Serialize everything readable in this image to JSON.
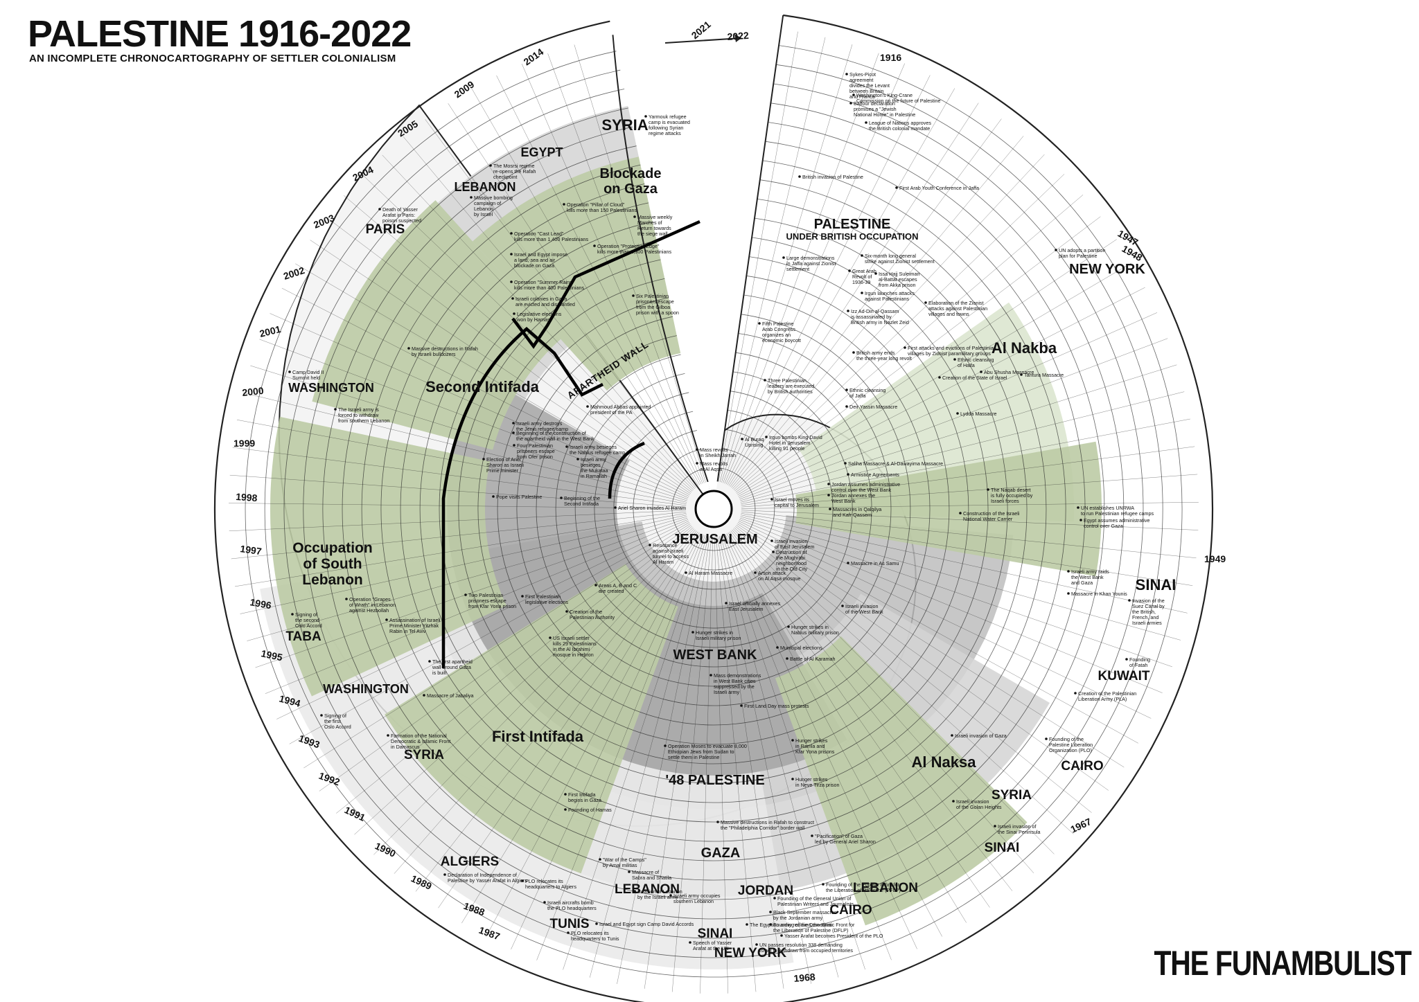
{
  "header": {
    "title": "PALESTINE 1916-2022",
    "subtitle": "AN INCOMPLETE CHRONOCARTOGRAPHY OF SETTLER COLONIALISM"
  },
  "brand": "THE FUNAMBULIST",
  "arrow_label": "2022",
  "year_labels_major": [
    "1916",
    "1947",
    "1948",
    "1949",
    "1967",
    "1968",
    "1987",
    "1988",
    "1989",
    "1990",
    "1991",
    "1992",
    "1993",
    "1994",
    "1995",
    "1996",
    "1997",
    "1998",
    "1999",
    "2000",
    "2001",
    "2002",
    "2003",
    "2004",
    "2005",
    "2009",
    "2014",
    "2021"
  ],
  "places": [
    {
      "id": "new-york-1948",
      "text": "NEW YORK"
    },
    {
      "id": "sinai-1956",
      "text": "SINAI"
    },
    {
      "id": "kuwait",
      "text": "KUWAIT"
    },
    {
      "id": "cairo-1964",
      "text": "CAIRO"
    },
    {
      "id": "syria-1967",
      "text": "SYRIA"
    },
    {
      "id": "sinai-1967",
      "text": "SINAI"
    },
    {
      "id": "lebanon-1970",
      "text": "LEBANON"
    },
    {
      "id": "jordan",
      "text": "JORDAN"
    },
    {
      "id": "cairo-1969",
      "text": "CAIRO"
    },
    {
      "id": "sinai-1973",
      "text": "SINAI"
    },
    {
      "id": "new-york-1974",
      "text": "NEW YORK"
    },
    {
      "id": "tunis",
      "text": "TUNIS"
    },
    {
      "id": "lebanon-1982",
      "text": "LEBANON"
    },
    {
      "id": "algiers",
      "text": "ALGIERS"
    },
    {
      "id": "syria-1991",
      "text": "SYRIA"
    },
    {
      "id": "washington-1993",
      "text": "WASHINGTON"
    },
    {
      "id": "taba",
      "text": "TABA"
    },
    {
      "id": "washington-2000",
      "text": "WASHINGTON"
    },
    {
      "id": "paris",
      "text": "PARIS"
    },
    {
      "id": "lebanon-2006",
      "text": "LEBANON"
    },
    {
      "id": "egypt",
      "text": "EGYPT"
    },
    {
      "id": "syria-2015",
      "text": "SYRIA"
    }
  ],
  "themes": [
    {
      "id": "palestine-british",
      "line1": "PALESTINE",
      "line2": "UNDER BRITISH OCCUPATION"
    },
    {
      "id": "nakba",
      "line1": "Al Nakba",
      "line2": ""
    },
    {
      "id": "naksa",
      "line1": "Al Naksa",
      "line2": ""
    },
    {
      "id": "jerusalem",
      "line1": "JERUSALEM",
      "line2": ""
    },
    {
      "id": "west-bank",
      "line1": "WEST BANK",
      "line2": ""
    },
    {
      "id": "48-palestine",
      "line1": "'48 PALESTINE",
      "line2": ""
    },
    {
      "id": "gaza",
      "line1": "GAZA",
      "line2": ""
    },
    {
      "id": "first-intifada",
      "line1": "First Intifada",
      "line2": ""
    },
    {
      "id": "second-intifada",
      "line1": "Second Intifada",
      "line2": ""
    },
    {
      "id": "occupation-lebanon",
      "line1": "Occupation",
      "line2": "of South",
      "line3": "Lebanon"
    },
    {
      "id": "blockade",
      "line1": "Blockade",
      "line2": "on Gaza"
    },
    {
      "id": "apartheid-wall",
      "line1": "APARTHEID WALL",
      "line2": ""
    }
  ],
  "events": [
    {
      "id": "e1",
      "lines": [
        "Sykes-Picot",
        "agreement",
        "divides the Levant",
        "between Britain",
        "and France"
      ]
    },
    {
      "id": "e2",
      "lines": [
        "Washington's King-Crane",
        "Commission on the future of Palestine"
      ]
    },
    {
      "id": "e3",
      "lines": [
        "Balfour declaration",
        "promises a \"Jewish",
        "National Home\" in Palestine"
      ]
    },
    {
      "id": "e4",
      "lines": [
        "League of Nations approves",
        "the British colonial mandate"
      ]
    },
    {
      "id": "e5",
      "lines": [
        "British invasion of Palestine"
      ]
    },
    {
      "id": "e6",
      "lines": [
        "First Arab Youth Conference in Jaffa"
      ]
    },
    {
      "id": "e7",
      "lines": [
        "UN adopts a partition",
        "plan for Palestine"
      ]
    },
    {
      "id": "e8",
      "lines": [
        "Large demonstrations",
        "in Jaffa against Zionist",
        "settlement"
      ]
    },
    {
      "id": "e9",
      "lines": [
        "Six-month long general",
        "strike against Zionist settlement"
      ]
    },
    {
      "id": "e10",
      "lines": [
        "Great Arab",
        "Revolt of",
        "1936-39"
      ]
    },
    {
      "id": "e11",
      "lines": [
        "Issa Hajj Suleiman",
        "al-Battat escapes",
        "from Akka prison"
      ]
    },
    {
      "id": "e12",
      "lines": [
        "Irgun launches attacks",
        "against Palestinians"
      ]
    },
    {
      "id": "e13",
      "lines": [
        "Elaboration of the Zionist",
        "attacks against Palestinian",
        "villages and towns"
      ]
    },
    {
      "id": "e14",
      "lines": [
        "Izz Ad-Din al-Qassam",
        "is assassinated by",
        "British army in Nazlet Zeid"
      ]
    },
    {
      "id": "e15",
      "lines": [
        "Fifth Palestine",
        "Arab Congress",
        "organizes an",
        "economic boycott"
      ]
    },
    {
      "id": "e16",
      "lines": [
        "British army ends",
        "the three-year long revolt"
      ]
    },
    {
      "id": "e17",
      "lines": [
        "First attacks and evictions of Palestinian",
        "villages by Zionist paramilitary groups"
      ]
    },
    {
      "id": "e18",
      "lines": [
        "Ethnic cleansing",
        "of Haifa"
      ]
    },
    {
      "id": "e19",
      "lines": [
        "Creation of the State of Israel"
      ]
    },
    {
      "id": "e20",
      "lines": [
        "Abu Shusha Massacre"
      ]
    },
    {
      "id": "e21",
      "lines": [
        "Tantura Massacre"
      ]
    },
    {
      "id": "e22",
      "lines": [
        "Three Palestinian",
        "leaders are executed",
        "by British authorities"
      ]
    },
    {
      "id": "e23",
      "lines": [
        "Ethnic cleansing",
        "of Jaffa"
      ]
    },
    {
      "id": "e24",
      "lines": [
        "Deir Yassin Massacre"
      ]
    },
    {
      "id": "e25",
      "lines": [
        "Lydda Massacre"
      ]
    },
    {
      "id": "e26",
      "lines": [
        "Al Buraq",
        "Uprising"
      ]
    },
    {
      "id": "e27",
      "lines": [
        "Irgun bombs King David",
        "Hotel in Jerusalem",
        "killing 91 people"
      ]
    },
    {
      "id": "e28",
      "lines": [
        "Saliha Massacre & Al-Dawayima Massacre"
      ]
    },
    {
      "id": "e29",
      "lines": [
        "Armistice Agreements"
      ]
    },
    {
      "id": "e30",
      "lines": [
        "Jordan assumes administrative",
        "control over the West Bank"
      ]
    },
    {
      "id": "e31",
      "lines": [
        "Israel moves its",
        "capital to Jerusalem"
      ]
    },
    {
      "id": "e32",
      "lines": [
        "Jordan annexes the",
        "West Bank"
      ]
    },
    {
      "id": "e33",
      "lines": [
        "The Naqab desert",
        "is fully occupied by",
        "Israeli forces"
      ]
    },
    {
      "id": "e34",
      "lines": [
        "UN establishes UNRWA",
        "to run Palestinian refugee camps"
      ]
    },
    {
      "id": "e35",
      "lines": [
        "Egypt assumes administrative",
        "control over Gaza"
      ]
    },
    {
      "id": "e36",
      "lines": [
        "Massacres in Qalqilya",
        "and Kafr Qassem"
      ]
    },
    {
      "id": "e37",
      "lines": [
        "Construction of the Israeli",
        "National Water Carrier"
      ]
    },
    {
      "id": "e38",
      "lines": [
        "Israeli army raids",
        "the West Bank",
        "and Gaza"
      ]
    },
    {
      "id": "e39",
      "lines": [
        "Massacre in Khan Younis"
      ]
    },
    {
      "id": "e40",
      "lines": [
        "Invasion of the",
        "Suez Canal by",
        "the British,",
        "French, and",
        "Israeli armies"
      ]
    },
    {
      "id": "e41",
      "lines": [
        "Founding",
        "of Fatah"
      ]
    },
    {
      "id": "e42",
      "lines": [
        "Creation of the Palestinian",
        "Liberation Army (PLA)"
      ]
    },
    {
      "id": "e43",
      "lines": [
        "Founding of the",
        "Palestine Liberation",
        "Organization (PLO)"
      ]
    },
    {
      "id": "e44",
      "lines": [
        "Israeli invasion of Gaza"
      ]
    },
    {
      "id": "e45",
      "lines": [
        "Israeli invasion",
        "of the Golan Heights"
      ]
    },
    {
      "id": "e46",
      "lines": [
        "Israeli invasion of",
        "the Sinai Peninsula"
      ]
    },
    {
      "id": "e47",
      "lines": [
        "Israeli invasion",
        "of East Jerusalem"
      ]
    },
    {
      "id": "e48",
      "lines": [
        "Destruction of",
        "the Mughrabi",
        "neighborhood",
        "in the Old City"
      ]
    },
    {
      "id": "e49",
      "lines": [
        "Massacre in As Samu"
      ]
    },
    {
      "id": "e50",
      "lines": [
        "Arson attack",
        "on Al Aqsa mosque"
      ]
    },
    {
      "id": "e51",
      "lines": [
        "Israeli invasion",
        "of the West Bank"
      ]
    },
    {
      "id": "e52",
      "lines": [
        "Israel officially annexes",
        "East Jerusalem"
      ]
    },
    {
      "id": "e53",
      "lines": [
        "Hunger strikes in",
        "Nablus military prison"
      ]
    },
    {
      "id": "e54",
      "lines": [
        "Hunger strikes in",
        "Israeli military prison"
      ]
    },
    {
      "id": "e55",
      "lines": [
        "Municipal elections"
      ]
    },
    {
      "id": "e56",
      "lines": [
        "Battle of Al Karamah"
      ]
    },
    {
      "id": "e57",
      "lines": [
        "Mass demonstrations",
        "in West Bank cities",
        "suppressed by the",
        "Israeli army"
      ]
    },
    {
      "id": "e58",
      "lines": [
        "First Land Day mass protests"
      ]
    },
    {
      "id": "e59",
      "lines": [
        "Operation Moses to evacuate 8,000",
        "Ethiopian Jews from Sudan to",
        "settle them in Palestine"
      ]
    },
    {
      "id": "e60",
      "lines": [
        "Hunger strikes",
        "in Ramla and",
        "Kfar Yona prisons"
      ]
    },
    {
      "id": "e61",
      "lines": [
        "Hunger strikes",
        "in Neve Tirza prison"
      ]
    },
    {
      "id": "e62",
      "lines": [
        "First Intifada",
        "begins in Gaza"
      ]
    },
    {
      "id": "e63",
      "lines": [
        "Founding of Hamas"
      ]
    },
    {
      "id": "e64",
      "lines": [
        "Massive destructions in Rafah to construct",
        "the \"Philadelphia Corridor\" border wall"
      ]
    },
    {
      "id": "e65",
      "lines": [
        "\"Pacification\" of Gaza",
        "led by General Ariel Sharon"
      ]
    },
    {
      "id": "e66",
      "lines": [
        "\"War of the Camps\"",
        "by Amal militias"
      ]
    },
    {
      "id": "e67",
      "lines": [
        "Massacre of",
        "Sabra and Shatila"
      ]
    },
    {
      "id": "e68",
      "lines": [
        "Invasion of Lebanon",
        "by the Israeli army"
      ]
    },
    {
      "id": "e69",
      "lines": [
        "Israeli army occupies",
        "southern Lebanon"
      ]
    },
    {
      "id": "e70",
      "lines": [
        "Founding of the Popular Front for",
        "the Liberation of Palestine (PFLP)"
      ]
    },
    {
      "id": "e71",
      "lines": [
        "Founding of the General Union of",
        "Palestinian Writers and Journalists"
      ]
    },
    {
      "id": "e72",
      "lines": [
        "Black September massacres",
        "by the Jordanian army"
      ]
    },
    {
      "id": "e73",
      "lines": [
        "Founding of the Democratic Front for",
        "the Liberation of Palestine (DFLP)"
      ]
    },
    {
      "id": "e74",
      "lines": [
        "Israel and Egypt sign Camp David Accords"
      ]
    },
    {
      "id": "e75",
      "lines": [
        "The Egyptian army reclaims the Sinai"
      ]
    },
    {
      "id": "e76",
      "lines": [
        "Yasser Arafat becomes President of the PLO"
      ]
    },
    {
      "id": "e77",
      "lines": [
        "Speech of Yasser",
        "Arafat at the UN"
      ]
    },
    {
      "id": "e78",
      "lines": [
        "UN passes resolution 338 demanding",
        "Israel to withdraw from occupied territories"
      ]
    },
    {
      "id": "e79",
      "lines": [
        "Israeli aircrafts bomb",
        "the PLO headquarters"
      ]
    },
    {
      "id": "e80",
      "lines": [
        "PLO relocates its",
        "headquarters to Tunis"
      ]
    },
    {
      "id": "e81",
      "lines": [
        "PLO relocates its",
        "headquarters to Algiers"
      ]
    },
    {
      "id": "e82",
      "lines": [
        "Declaration of Independence of",
        "Palestine by Yasser Arafat in Algiers"
      ]
    },
    {
      "id": "e83",
      "lines": [
        "Formation of the National",
        "Democratic & Islamic Front",
        "in Damascus"
      ]
    },
    {
      "id": "e84",
      "lines": [
        "Signing of",
        "the first",
        "Oslo Accord"
      ]
    },
    {
      "id": "e85",
      "lines": [
        "Massacre of Jabaliya"
      ]
    },
    {
      "id": "e86",
      "lines": [
        "The first apartheid",
        "wall around Gaza",
        "is built"
      ]
    },
    {
      "id": "e87",
      "lines": [
        "Signing of",
        "the second",
        "Oslo Accord"
      ]
    },
    {
      "id": "e88",
      "lines": [
        "Assassination of Israeli",
        "Prime Minister Yitzhak",
        "Rabin in Tel Aviv"
      ]
    },
    {
      "id": "e89",
      "lines": [
        "Operation \"Grapes",
        "of Wrath\" in Lebanon",
        "against Hezbollah"
      ]
    },
    {
      "id": "e90",
      "lines": [
        "Two Palestinian",
        "prisoners escape",
        "from Kfar Yona prison"
      ]
    },
    {
      "id": "e91",
      "lines": [
        "First Palestinian",
        "legislative elections"
      ]
    },
    {
      "id": "e92",
      "lines": [
        "Creation of the",
        "Palestinian Authority"
      ]
    },
    {
      "id": "e93",
      "lines": [
        "US Israeli settler",
        "kills 29 Palestinians",
        "in the Al Ibrahimi",
        "mosque in Hebron"
      ]
    },
    {
      "id": "e94",
      "lines": [
        "Areas A, B and C",
        "are created"
      ]
    },
    {
      "id": "e95",
      "lines": [
        "Al Haram Massacre"
      ]
    },
    {
      "id": "e96",
      "lines": [
        "Resistance",
        "against Israeli",
        "tunnel to access",
        "Al Haram"
      ]
    },
    {
      "id": "e97",
      "lines": [
        "Ariel Sharon invades Al Haram"
      ]
    },
    {
      "id": "e98",
      "lines": [
        "Pope visits Palestine"
      ]
    },
    {
      "id": "e99",
      "lines": [
        "Beginning of the",
        "Second Intifada"
      ]
    },
    {
      "id": "e100",
      "lines": [
        "The Israeli army is",
        "forced to withdraw",
        "from southern Lebanon"
      ]
    },
    {
      "id": "e101",
      "lines": [
        "Camp David II",
        "Summit held"
      ]
    },
    {
      "id": "e102",
      "lines": [
        "Massive destructions in Rafah",
        "by Israeli bulldozers"
      ]
    },
    {
      "id": "e103",
      "lines": [
        "Death of Yasser",
        "Arafat in Paris:",
        "poison suspected"
      ]
    },
    {
      "id": "e104",
      "lines": [
        "Election of Ariel",
        "Sharon as Israeli",
        "Prime minister"
      ]
    },
    {
      "id": "e105",
      "lines": [
        "Four Palestinian",
        "prisoners escape",
        "from Ofer prison"
      ]
    },
    {
      "id": "e106",
      "lines": [
        "Israeli army destroys",
        "the Jenin refugee camp"
      ]
    },
    {
      "id": "e107",
      "lines": [
        "Beginning of the construction of",
        "the apartheid wall in the West Bank"
      ]
    },
    {
      "id": "e108",
      "lines": [
        "Israeli army besieges",
        "the Nablus refugee camp"
      ]
    },
    {
      "id": "e109",
      "lines": [
        "Israeli army",
        "besieges",
        "the Mukataa",
        "in Ramallah"
      ]
    },
    {
      "id": "e110",
      "lines": [
        "Mahmoud Abbas appointed",
        "president of the PA"
      ]
    },
    {
      "id": "e111",
      "lines": [
        "Mass revolts",
        "in Sheikh Jarrah"
      ]
    },
    {
      "id": "e112",
      "lines": [
        "Mass revolts",
        "at Al Aqsa"
      ]
    },
    {
      "id": "e113",
      "lines": [
        "Six Palestinian",
        "prisoners escape",
        "from the Gilboa",
        "prison with a spoon"
      ]
    },
    {
      "id": "e114",
      "lines": [
        "Legislative elections",
        "won by Hamas"
      ]
    },
    {
      "id": "e115",
      "lines": [
        "Israeli colonies in Gaza",
        "are evicted and dismantled"
      ]
    },
    {
      "id": "e116",
      "lines": [
        "Operation \"Summer Rains\"",
        "kills more than 400 Palestinians"
      ]
    },
    {
      "id": "e117",
      "lines": [
        "Israel and Egypt impose",
        "a land, sea and air",
        "blockade on Gaza"
      ]
    },
    {
      "id": "e118",
      "lines": [
        "Operation \"Cast Lead\"",
        "kills more than 1,400 Palestinians"
      ]
    },
    {
      "id": "e119",
      "lines": [
        "Operation \"Protective Edge\"",
        "kills more than 2,300 Palestinians"
      ]
    },
    {
      "id": "e120",
      "lines": [
        "Operation \"Pillar of Cloud\"",
        "kills more than 150 Palestinians"
      ]
    },
    {
      "id": "e121",
      "lines": [
        "Massive weekly",
        "Marches of",
        "Return towards",
        "the siege wall"
      ]
    },
    {
      "id": "e122",
      "lines": [
        "Massive bombing",
        "campaign of",
        "Lebanon",
        "by Israel"
      ]
    },
    {
      "id": "e123",
      "lines": [
        "The Mosrsi regime",
        "re-opens the Rafah",
        "checkpoint"
      ]
    },
    {
      "id": "e124",
      "lines": [
        "Yarmouk refugee",
        "camp is evacuated",
        "following Syrian",
        "regime attacks"
      ]
    }
  ],
  "colors": {
    "green": "#bccba5",
    "green_light": "#dbe6cf",
    "gray1": "#e9e9e9",
    "gray2": "#d4d4d4",
    "gray3": "#bdbdbd",
    "gray4": "#a5a5a5",
    "line": "#222222"
  }
}
